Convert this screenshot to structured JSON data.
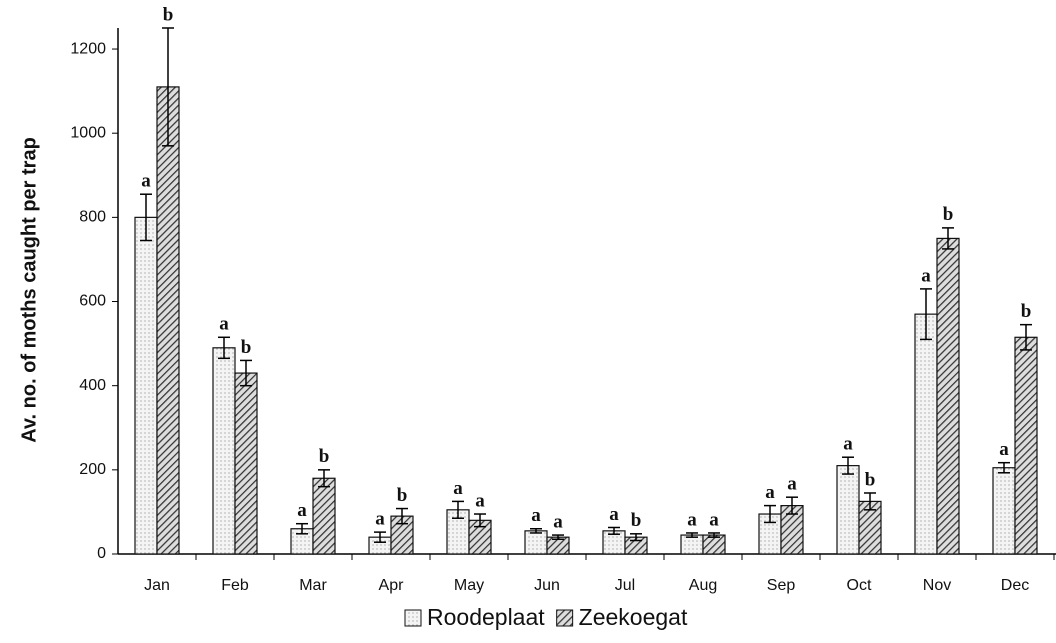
{
  "chart_data": {
    "type": "bar",
    "y_label": "Av. no. of moths caught per trap",
    "categories": [
      "Jan",
      "Feb",
      "Mar",
      "Apr",
      "May",
      "Jun",
      "Jul",
      "Aug",
      "Sep",
      "Oct",
      "Nov",
      "Dec"
    ],
    "series": [
      {
        "name": "Roodeplaat",
        "color": "#f4f4f4",
        "pattern": "dots",
        "values": [
          800,
          490,
          60,
          40,
          105,
          55,
          55,
          45,
          95,
          210,
          570,
          205
        ],
        "errors": [
          55,
          25,
          12,
          12,
          20,
          5,
          8,
          5,
          20,
          20,
          60,
          12
        ],
        "labels": [
          "a",
          "a",
          "a",
          "a",
          "a",
          "a",
          "a",
          "a",
          "a",
          "a",
          "a",
          "a"
        ]
      },
      {
        "name": "Zeekoegat",
        "color": "#777777",
        "pattern": "hatch",
        "values": [
          1110,
          430,
          180,
          90,
          80,
          40,
          40,
          45,
          115,
          125,
          750,
          515
        ],
        "errors": [
          140,
          30,
          20,
          18,
          15,
          5,
          8,
          5,
          20,
          20,
          25,
          30
        ],
        "labels": [
          "b",
          "b",
          "b",
          "b",
          "a",
          "a",
          "b",
          "a",
          "a",
          "b",
          "b",
          "b"
        ]
      }
    ],
    "ylim": [
      0,
      1250
    ],
    "yticks": [
      0,
      200,
      400,
      600,
      800,
      1000,
      1200
    ],
    "grid": false,
    "legend": "bottom"
  }
}
